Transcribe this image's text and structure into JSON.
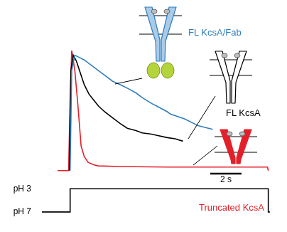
{
  "chart_data": [
    {
      "type": "line",
      "xlim": [
        -0.5,
        15.1
      ],
      "ylim": [
        -0.05,
        1.05
      ],
      "tick_labels": false,
      "grid": false,
      "series": [
        {
          "name": "FL KcsA/Fab",
          "color": "#2e7ebf",
          "x": [
            1.8,
            1.9,
            2.1,
            2.4,
            2.7,
            3.0,
            3.6,
            4.0,
            4.5,
            5.0,
            5.45,
            6.0,
            6.4,
            7.0,
            7.3,
            8.0,
            8.2,
            9.1,
            10.0,
            10.9
          ],
          "values": [
            0,
            0.85,
            0.98,
            0.96,
            0.94,
            0.91,
            0.85,
            0.81,
            0.76,
            0.73,
            0.7,
            0.66,
            0.62,
            0.57,
            0.55,
            0.5,
            0.48,
            0.44,
            0.38,
            0.35
          ]
        },
        {
          "name": "FL KcsA",
          "color": "#000000",
          "x": [
            1.75,
            1.85,
            2.0,
            2.2,
            2.45,
            2.7,
            3.0,
            3.3,
            3.6,
            4.0,
            4.5,
            5.0,
            5.45,
            6.0,
            6.4,
            7.0,
            7.3,
            8.0,
            8.5,
            9.0
          ],
          "values": [
            0,
            0.85,
            0.98,
            0.93,
            0.83,
            0.73,
            0.65,
            0.6,
            0.55,
            0.5,
            0.45,
            0.4,
            0.36,
            0.34,
            0.32,
            0.31,
            0.3,
            0.28,
            0.27,
            0.25
          ]
        },
        {
          "name": "Truncated KcsA",
          "color": "#e3202a",
          "x": [
            1.0,
            1.7,
            1.8,
            1.9,
            2.1,
            2.3,
            2.5,
            2.7,
            2.95,
            3.3,
            3.6,
            5.0,
            8.0,
            11.0,
            14.4,
            14.45
          ],
          "values": [
            0,
            0,
            0.6,
            1.02,
            0.85,
            0.55,
            0.21,
            0.12,
            0.07,
            0.05,
            0.04,
            0.035,
            0.03,
            0.03,
            0.03,
            0
          ]
        }
      ],
      "scale_bar": {
        "length": 2,
        "label": "2 s"
      }
    },
    {
      "type": "line",
      "xlim": [
        -0.5,
        15.1
      ],
      "ylim": [
        8,
        2.5
      ],
      "yticks": [
        {
          "value": 3,
          "label": "pH 3"
        },
        {
          "value": 7,
          "label": "pH 7"
        }
      ],
      "tick_labels": "y",
      "grid": false,
      "series": [
        {
          "color": "#000000",
          "x": [
            0,
            1.8,
            1.8,
            14.45,
            14.45,
            14.55
          ],
          "values": [
            7,
            7,
            3,
            3,
            7,
            7
          ]
        }
      ]
    }
  ]
}
